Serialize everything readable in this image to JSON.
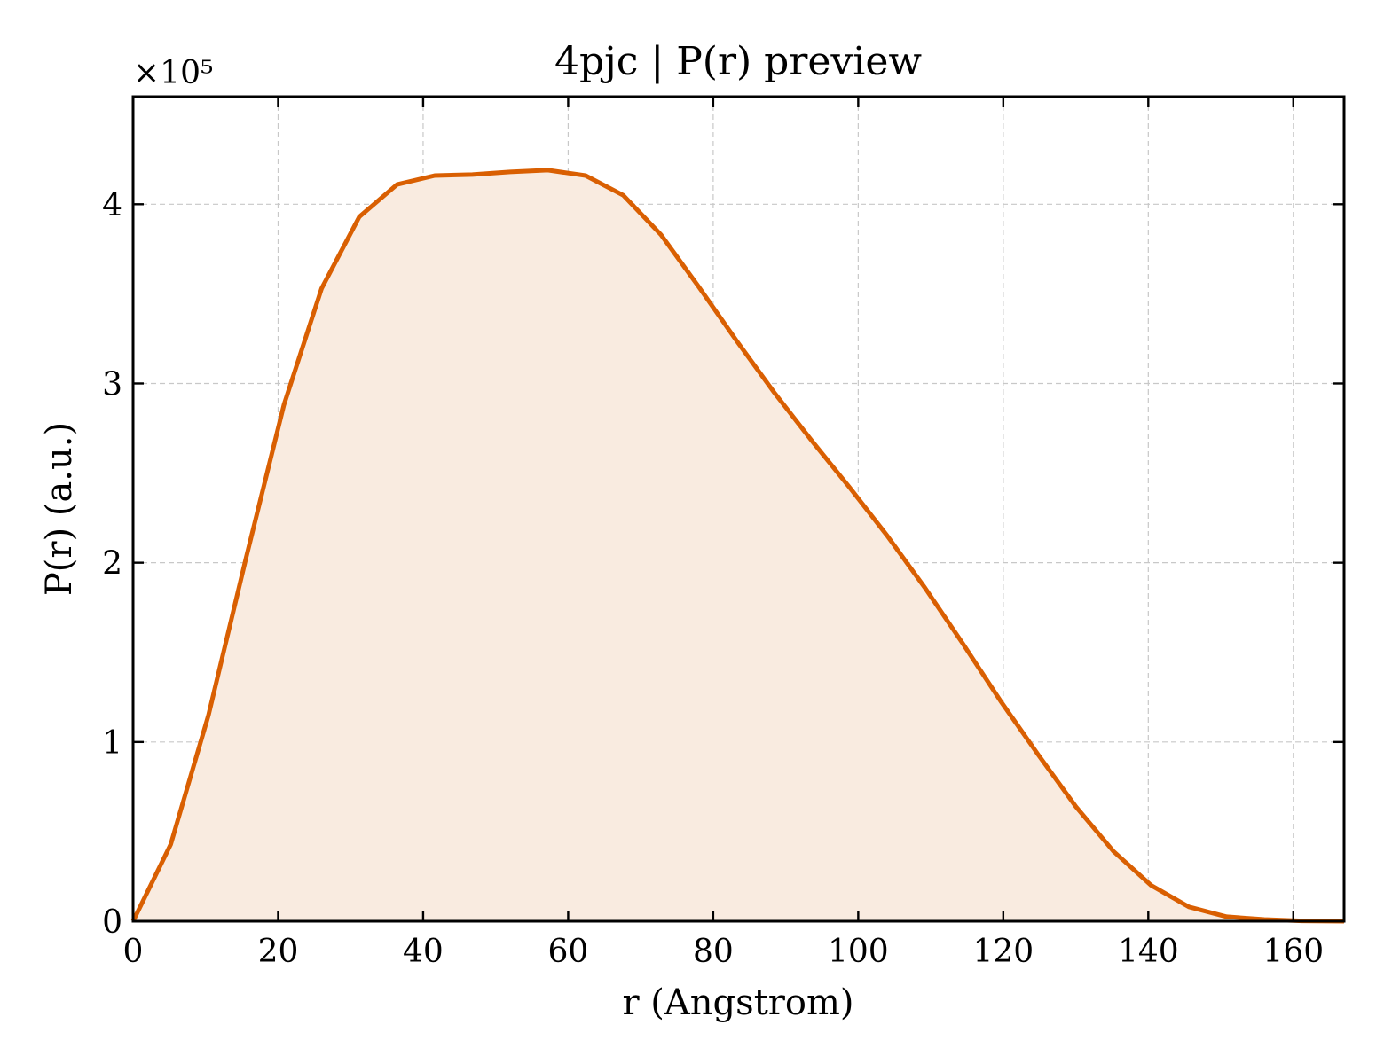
{
  "chart_data": {
    "type": "area",
    "title": "4pjc | P(r) preview",
    "xlabel": "r (Angstrom)",
    "ylabel": "P(r) (a.u.)",
    "y_offset_label": "×10⁵",
    "y_scale_factor": 100000,
    "xlim": [
      0,
      167
    ],
    "ylim": [
      0,
      460000
    ],
    "x_ticks": [
      0,
      20,
      40,
      60,
      80,
      100,
      120,
      140,
      160
    ],
    "x_tick_labels": [
      "0",
      "20",
      "40",
      "60",
      "80",
      "100",
      "120",
      "140",
      "160"
    ],
    "y_ticks": [
      0,
      100000,
      200000,
      300000,
      400000
    ],
    "y_tick_labels": [
      "0",
      "1",
      "2",
      "3",
      "4"
    ],
    "grid": true,
    "colors": {
      "line": "#d95f02",
      "fill": "#f9ebe0",
      "axes": "#000000",
      "grid": "#c8c8c8"
    },
    "series": [
      {
        "x": [
          0,
          5.2,
          10.4,
          15.6,
          20.8,
          26.0,
          31.2,
          36.4,
          41.6,
          46.8,
          52.0,
          57.2,
          62.4,
          67.6,
          72.8,
          78.0,
          83.2,
          88.4,
          93.6,
          98.8,
          104.0,
          109.2,
          114.4,
          119.6,
          124.8,
          130.0,
          135.2,
          140.4,
          145.6,
          150.8,
          156.0,
          161.2,
          167.0
        ],
        "y": [
          0,
          43000,
          115000,
          203000,
          288000,
          353000,
          393000,
          411000,
          416000,
          416500,
          418000,
          419000,
          416000,
          405000,
          383000,
          354000,
          324000,
          295000,
          268000,
          242000,
          215000,
          186000,
          155000,
          123000,
          93000,
          64000,
          39000,
          20000,
          8000,
          2500,
          1000,
          200,
          0
        ]
      }
    ]
  }
}
